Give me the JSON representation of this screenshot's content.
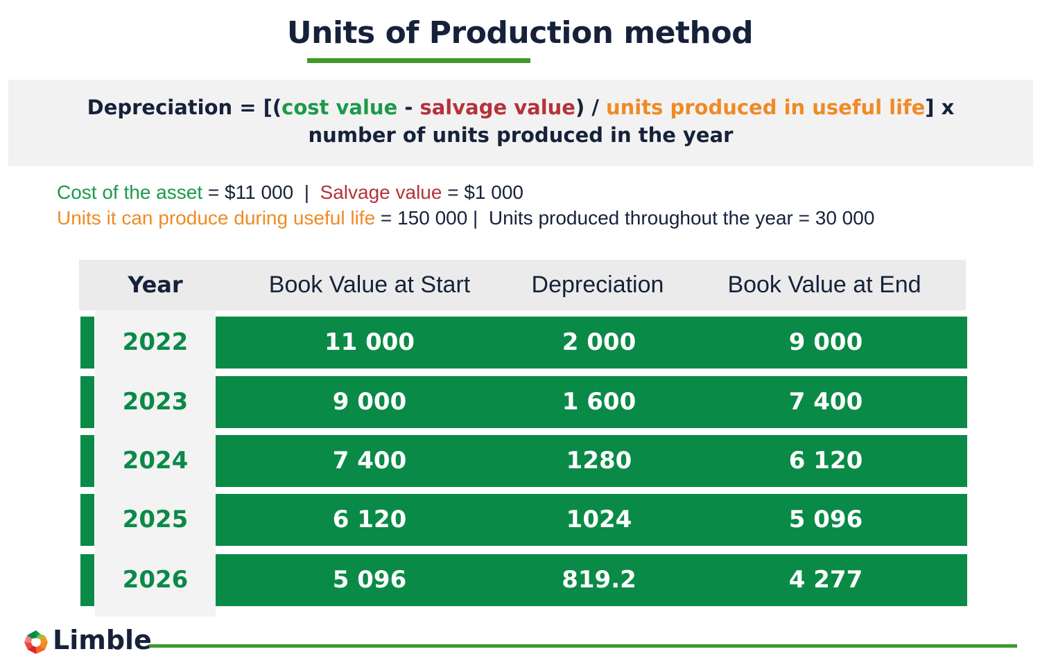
{
  "title": "Units of Production method",
  "formula": {
    "lead": "Depreciation = [(",
    "cost": "cost value",
    "dash": " - ",
    "salvage": "salvage value",
    "mid": ") / ",
    "units": "units produced in useful life",
    "tail": "] x number of units produced in the year"
  },
  "given": {
    "cost_label": "Cost of the asset",
    "cost_value": " = $11 000  |  ",
    "salvage_label": "Salvage value",
    "salvage_value": " = $1 000",
    "units_label": "Units it can produce during useful life",
    "units_value": " = 150 000 |  Units produced throughout the year = 30 000"
  },
  "table": {
    "headers": [
      "Year",
      "Book Value at Start",
      "Depreciation",
      "Book Value at End"
    ],
    "rows": [
      [
        "2022",
        "11 000",
        "2 000",
        "9 000"
      ],
      [
        "2023",
        "9 000",
        "1 600",
        "7 400"
      ],
      [
        "2024",
        "7 400",
        "1280",
        "6 120"
      ],
      [
        "2025",
        "6 120",
        "1024",
        "5 096"
      ],
      [
        "2026",
        "5 096",
        "819.2",
        "4 277"
      ]
    ]
  },
  "logo": {
    "text": "Limble",
    "icon": "gear-logo-icon"
  },
  "colors": {
    "green": "#0a8a47",
    "cost": "#1a9a4a",
    "salvage": "#b5323a",
    "units": "#f08a24",
    "accent_line": "#3f9a2a"
  }
}
